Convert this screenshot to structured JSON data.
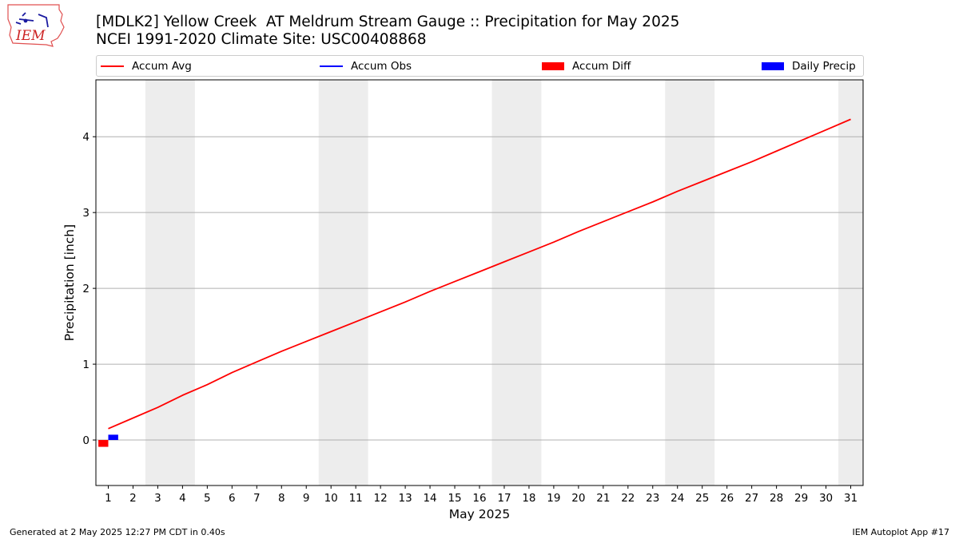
{
  "header": {
    "title_line1": "[MDLK2] Yellow Creek  AT Meldrum Stream Gauge :: Precipitation for May 2025",
    "title_line2": "NCEI 1991-2020 Climate Site: USC00408868",
    "logo_text": "IEM"
  },
  "legend": {
    "items": [
      {
        "label": "Accum Avg",
        "kind": "line",
        "color": "#ff0000"
      },
      {
        "label": "Accum Obs",
        "kind": "line",
        "color": "#0000ff"
      },
      {
        "label": "Accum Diff",
        "kind": "patch",
        "color": "#ff0000"
      },
      {
        "label": "Daily Precip",
        "kind": "patch",
        "color": "#0000ff"
      }
    ]
  },
  "footer": {
    "left": "Generated at 2 May 2025 12:27 PM CDT in 0.40s",
    "right": "IEM Autoplot App #17"
  },
  "chart_data": {
    "type": "line",
    "xlabel": "May 2025",
    "ylabel": "Precipitation [inch]",
    "x": [
      1,
      2,
      3,
      4,
      5,
      6,
      7,
      8,
      9,
      10,
      11,
      12,
      13,
      14,
      15,
      16,
      17,
      18,
      19,
      20,
      21,
      22,
      23,
      24,
      25,
      26,
      27,
      28,
      29,
      30,
      31
    ],
    "xlim": [
      0.5,
      31.5
    ],
    "ylim": [
      -0.6,
      4.75
    ],
    "yticks": [
      0,
      1,
      2,
      3,
      4
    ],
    "grid": "horizontal",
    "legend_position": "top",
    "weekend_shading": [
      [
        2.5,
        4.5
      ],
      [
        9.5,
        11.5
      ],
      [
        16.5,
        18.5
      ],
      [
        23.5,
        25.5
      ],
      [
        30.5,
        31.5
      ]
    ],
    "series": [
      {
        "name": "Accum Avg",
        "kind": "line",
        "color": "#ff0000",
        "values": [
          0.15,
          0.29,
          0.43,
          0.59,
          0.73,
          0.89,
          1.03,
          1.17,
          1.3,
          1.43,
          1.56,
          1.69,
          1.82,
          1.96,
          2.09,
          2.22,
          2.35,
          2.48,
          2.61,
          2.75,
          2.88,
          3.01,
          3.14,
          3.28,
          3.41,
          3.54,
          3.67,
          3.81,
          3.95,
          4.09,
          4.23
        ]
      },
      {
        "name": "Accum Diff",
        "kind": "bar",
        "color": "#ff0000",
        "x": [
          1
        ],
        "values": [
          -0.09
        ],
        "offset": -0.2
      },
      {
        "name": "Daily Precip",
        "kind": "bar",
        "color": "#0000ff",
        "x": [
          1
        ],
        "values": [
          0.07
        ],
        "offset": 0.2
      }
    ]
  }
}
